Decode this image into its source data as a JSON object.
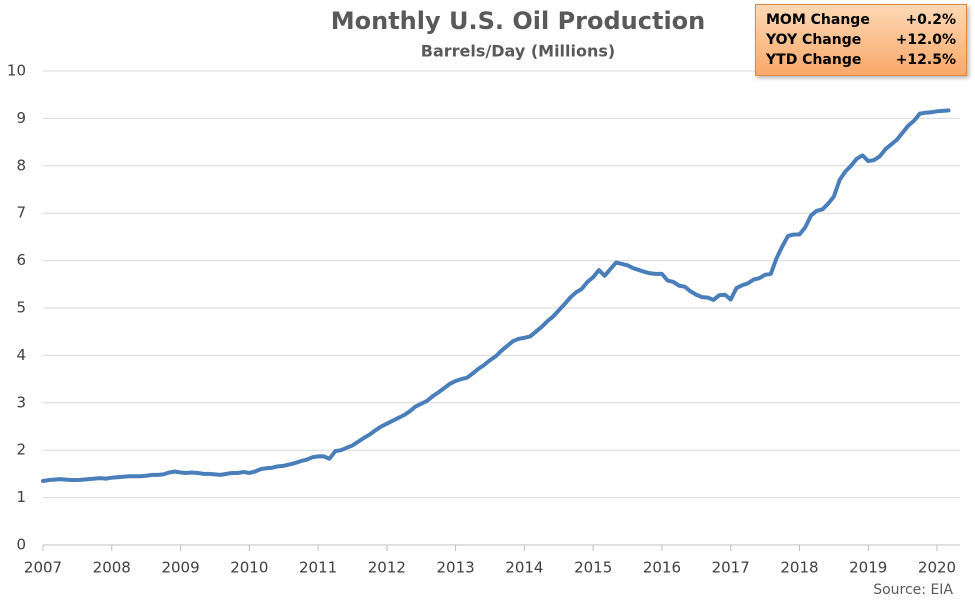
{
  "chart_data": {
    "type": "line",
    "title": "Monthly U.S. Oil Production",
    "subtitle": "Barrels/Day (Millions)",
    "categories": [
      "2007",
      null,
      null,
      null,
      null,
      null,
      null,
      null,
      null,
      null,
      null,
      null,
      "2008",
      null,
      null,
      null,
      null,
      null,
      null,
      null,
      null,
      null,
      null,
      null,
      "2009",
      null,
      null,
      null,
      null,
      null,
      null,
      null,
      null,
      null,
      null,
      null,
      "2010",
      null,
      null,
      null,
      null,
      null,
      null,
      null,
      null,
      null,
      null,
      null,
      "2011",
      null,
      null,
      null,
      null,
      null,
      null,
      null,
      null,
      null,
      null,
      null,
      "2012",
      null,
      null,
      null,
      null,
      null,
      null,
      null,
      null,
      null,
      null,
      null,
      "2013",
      null,
      null,
      null,
      null,
      null,
      null,
      null,
      null,
      null,
      null,
      null,
      "2014",
      null,
      null,
      null,
      null,
      null,
      null,
      null,
      null,
      null,
      null,
      null,
      "2015",
      null,
      null,
      null,
      null,
      null,
      null,
      null,
      null,
      null,
      null,
      null,
      "2016",
      null,
      null,
      null,
      null,
      null,
      null,
      null,
      null,
      null,
      null,
      null,
      "2017",
      null,
      null,
      null,
      null,
      null,
      null,
      null,
      null,
      null,
      null,
      null,
      "2018",
      null,
      null,
      null,
      null,
      null,
      null,
      null,
      null,
      null,
      null,
      null,
      "2019",
      null,
      null,
      null,
      null,
      null,
      null,
      null,
      null,
      null,
      null,
      null,
      "2020",
      null,
      null
    ],
    "series": [
      {
        "color": "#4a7ebb",
        "values": [
          1.35,
          1.37,
          1.38,
          1.39,
          1.38,
          1.37,
          1.37,
          1.38,
          1.39,
          1.4,
          1.41,
          1.4,
          1.42,
          1.43,
          1.44,
          1.45,
          1.45,
          1.45,
          1.46,
          1.48,
          1.48,
          1.49,
          1.53,
          1.55,
          1.53,
          1.52,
          1.53,
          1.52,
          1.5,
          1.5,
          1.49,
          1.48,
          1.5,
          1.52,
          1.52,
          1.54,
          1.52,
          1.55,
          1.6,
          1.62,
          1.63,
          1.66,
          1.67,
          1.7,
          1.73,
          1.77,
          1.8,
          1.85,
          1.87,
          1.87,
          1.82,
          1.98,
          2.0,
          2.05,
          2.1,
          2.18,
          2.26,
          2.33,
          2.42,
          2.5,
          2.56,
          2.62,
          2.68,
          2.74,
          2.82,
          2.92,
          2.98,
          3.04,
          3.14,
          3.22,
          3.31,
          3.4,
          3.46,
          3.5,
          3.53,
          3.62,
          3.72,
          3.8,
          3.9,
          3.98,
          4.1,
          4.2,
          4.3,
          4.35,
          4.37,
          4.4,
          4.5,
          4.6,
          4.72,
          4.82,
          4.95,
          5.08,
          5.22,
          5.33,
          5.4,
          5.55,
          5.65,
          5.8,
          5.68,
          5.82,
          5.96,
          5.93,
          5.9,
          5.84,
          5.8,
          5.76,
          5.73,
          5.72,
          5.72,
          5.58,
          5.55,
          5.47,
          5.45,
          5.35,
          5.28,
          5.23,
          5.22,
          5.17,
          5.27,
          5.28,
          5.18,
          5.42,
          5.48,
          5.52,
          5.6,
          5.63,
          5.7,
          5.72,
          6.05,
          6.3,
          6.52,
          6.55,
          6.55,
          6.7,
          6.95,
          7.05,
          7.08,
          7.2,
          7.35,
          7.7,
          7.88,
          8.0,
          8.15,
          8.22,
          8.1,
          8.12,
          8.2,
          8.35,
          8.45,
          8.55,
          8.7,
          8.85,
          8.95,
          9.1,
          9.12,
          9.13,
          9.15,
          9.16,
          9.17
        ]
      }
    ],
    "ylim": [
      0,
      10
    ],
    "yticks": [
      0,
      1,
      2,
      3,
      4,
      5,
      6,
      7,
      8,
      9,
      10
    ],
    "grid": true,
    "source": "Source: EIA",
    "info_box": [
      [
        "MOM Change",
        "+0.2%"
      ],
      [
        "YOY Change",
        "+12.0%"
      ],
      [
        "YTD Change",
        "+12.5%"
      ]
    ]
  }
}
